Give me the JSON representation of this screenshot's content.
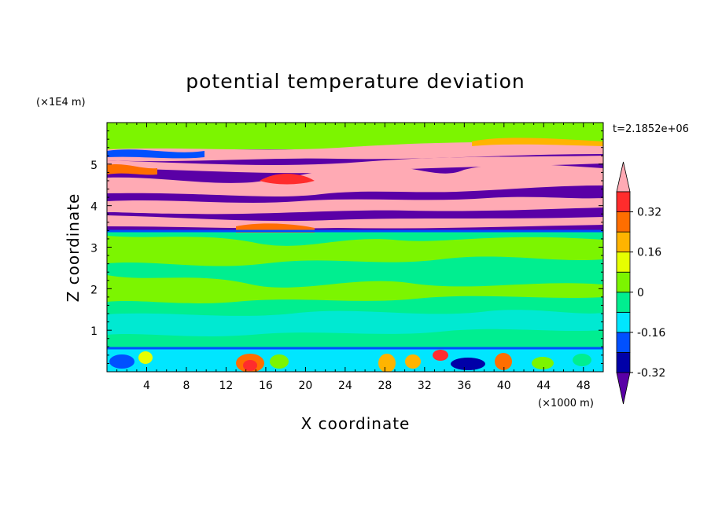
{
  "chart_data": {
    "type": "heatmap",
    "title": "potential temperature deviation",
    "xlabel": "X coordinate",
    "ylabel": "Z coordinate",
    "x_unit_label": "(×1000 m)",
    "y_unit_label": "(×1E4 m)",
    "time_label": "t=2.1852e+06",
    "xlim": [
      0,
      50
    ],
    "ylim": [
      0,
      6
    ],
    "x_ticks": [
      "4",
      "8",
      "12",
      "16",
      "20",
      "24",
      "28",
      "32",
      "36",
      "40",
      "44",
      "48"
    ],
    "y_ticks": [
      "1",
      "2",
      "3",
      "4",
      "5"
    ],
    "colorbar": {
      "labels": [
        "0.32",
        "0.16",
        "0",
        "-0.16",
        "-0.32"
      ],
      "levels": [
        -0.4,
        -0.32,
        -0.24,
        -0.16,
        -0.08,
        0,
        0.08,
        0.16,
        0.24,
        0.32,
        0.4
      ],
      "colors": [
        "#5a00a6",
        "#0000a8",
        "#0050ff",
        "#00e6ff",
        "#00ee90",
        "#7cf500",
        "#e6ff00",
        "#ffb400",
        "#ff6e00",
        "#ff2c2c",
        "#ffaab4"
      ],
      "extend": "both"
    },
    "layers": [
      {
        "z_range": [
          0,
          0.55
        ],
        "description_value": "mixed",
        "values": [
          -0.2,
          0.05,
          0.25,
          -0.3
        ]
      },
      {
        "z_range": [
          0.55,
          3.4
        ],
        "values": [
          0,
          0.08
        ]
      },
      {
        "z_range": [
          3.4,
          5.4
        ],
        "values": [
          -0.4,
          0.4
        ]
      },
      {
        "z_range": [
          5.4,
          6.0
        ],
        "values": [
          0.08
        ]
      }
    ]
  }
}
